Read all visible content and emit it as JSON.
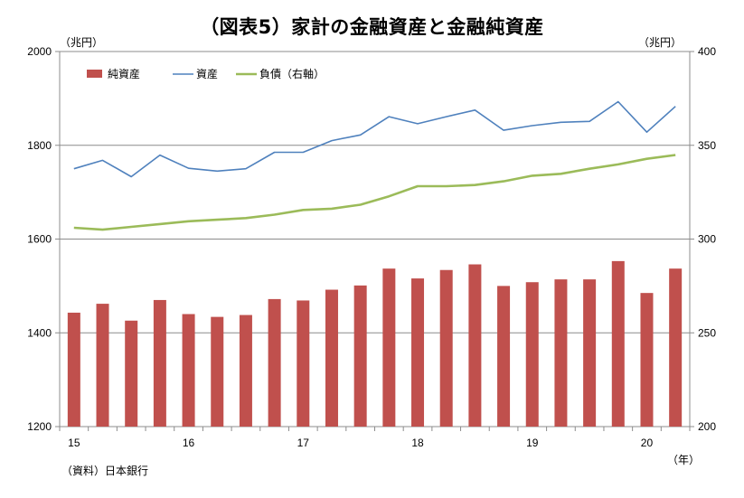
{
  "title": "（図表5）家計の金融資産と金融純資産",
  "unit_left": "（兆円）",
  "unit_right": "（兆円）",
  "source": "（資料）日本銀行",
  "x_unit": "（年）",
  "chart_data": {
    "type": "bar+line",
    "title": "（図表5）家計の金融資産と金融純資産",
    "xlabel": "（年）",
    "ylabel_left": "（兆円）",
    "ylabel_right": "（兆円）",
    "x_tick_labels": [
      "15",
      "16",
      "17",
      "18",
      "19",
      "20"
    ],
    "periods": [
      "15Q1",
      "15Q2",
      "15Q3",
      "15Q4",
      "16Q1",
      "16Q2",
      "16Q3",
      "16Q4",
      "17Q1",
      "17Q2",
      "17Q3",
      "17Q4",
      "18Q1",
      "18Q2",
      "18Q3",
      "18Q4",
      "19Q1",
      "19Q2",
      "19Q3",
      "19Q4",
      "20Q1",
      "20Q2"
    ],
    "left_axis": {
      "min": 1200,
      "max": 2000,
      "ticks": [
        "1200",
        "1400",
        "1600",
        "1800",
        "2000"
      ]
    },
    "right_axis": {
      "min": 200,
      "max": 400,
      "ticks": [
        "200",
        "250",
        "300",
        "350",
        "400"
      ]
    },
    "series": [
      {
        "name": "純資産",
        "type": "bar",
        "axis": "left",
        "color": "#c0504d",
        "values": [
          1443,
          1462,
          1426,
          1470,
          1440,
          1434,
          1438,
          1472,
          1469,
          1492,
          1501,
          1537,
          1516,
          1534,
          1546,
          1500,
          1508,
          1514,
          1514,
          1553,
          1485,
          1537
        ]
      },
      {
        "name": "資産",
        "type": "line",
        "axis": "left",
        "color": "#4f81bd",
        "values": [
          1750,
          1768,
          1733,
          1779,
          1751,
          1745,
          1750,
          1785,
          1785,
          1810,
          1822,
          1861,
          1846,
          1861,
          1875,
          1832,
          1842,
          1849,
          1851,
          1893,
          1828,
          1883
        ]
      },
      {
        "name": "負債（右軸）",
        "type": "line",
        "axis": "right",
        "color": "#9bbb59",
        "values": [
          306,
          305,
          306.5,
          308,
          309.5,
          310.3,
          311.2,
          313,
          315.5,
          316.2,
          318.3,
          322.8,
          328.2,
          328.2,
          328.8,
          330.8,
          333.8,
          334.8,
          337.5,
          339.8,
          342.8,
          344.8
        ]
      }
    ],
    "legend_position": "top-left",
    "grid": "horizontal"
  }
}
